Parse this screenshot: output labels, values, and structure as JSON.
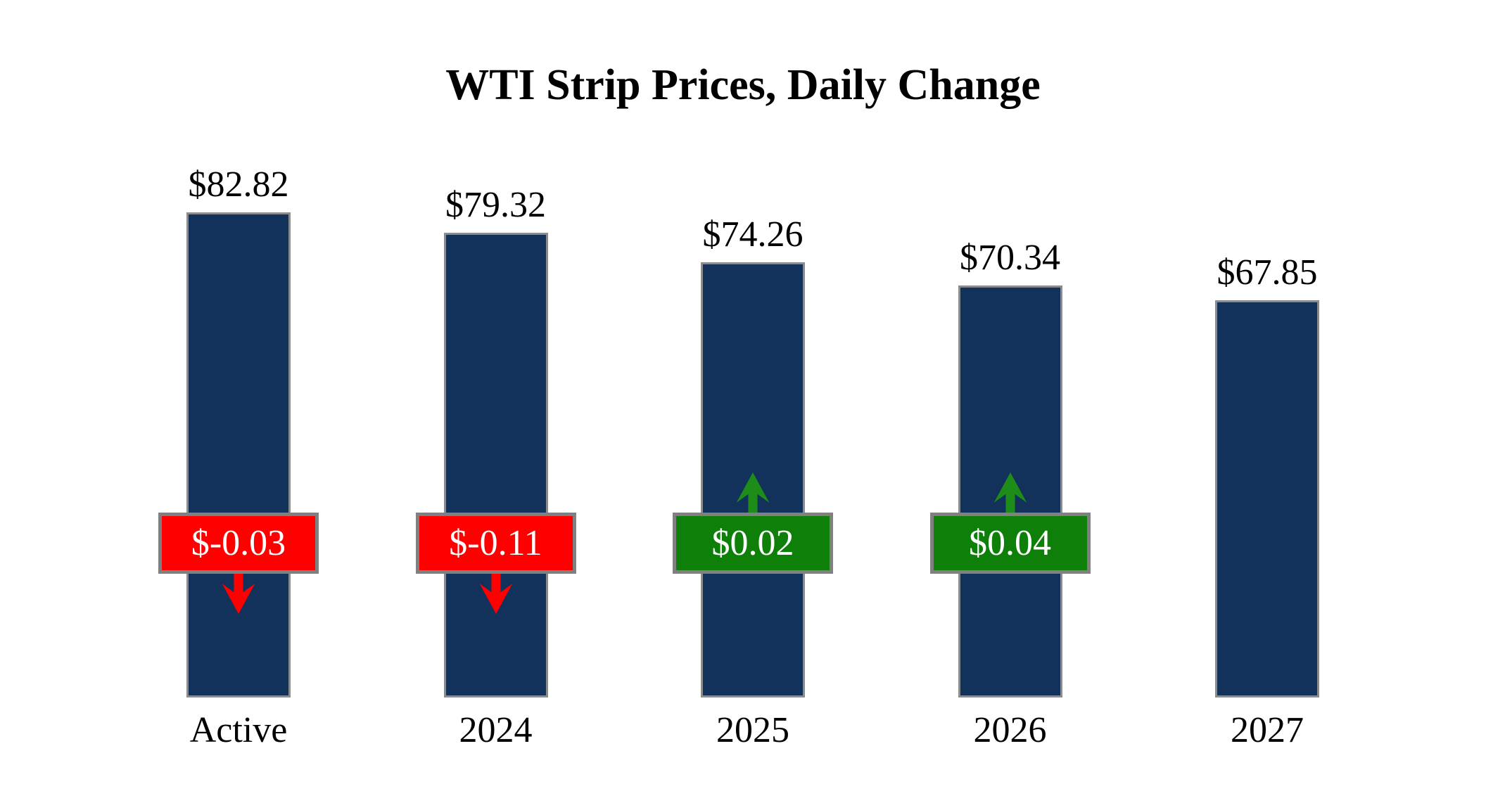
{
  "page": {
    "background_color": "#FFFFFF"
  },
  "chart_data": {
    "type": "bar",
    "title": "WTI Strip Prices, Daily Change",
    "categories": [
      "Active",
      "2024",
      "2025",
      "2026",
      "2027"
    ],
    "values": [
      82.82,
      79.32,
      74.26,
      70.34,
      67.85
    ],
    "value_labels": [
      "$82.82",
      "$79.32",
      "$74.26",
      "$70.34",
      "$67.85"
    ],
    "changes": {
      "values": [
        -0.03,
        -0.11,
        0.02,
        0.04,
        null
      ],
      "labels": [
        "$-0.03",
        "$-0.11",
        "$0.02",
        "$0.04",
        ""
      ],
      "directions": [
        "down",
        "down",
        "up",
        "up",
        "none"
      ]
    },
    "xlabel": "",
    "ylabel": "",
    "ylim": [
      0,
      90
    ],
    "axes_visible": false,
    "grid": false,
    "legend": false,
    "colors": {
      "bar_fill": "#12315B",
      "bar_border": "#8C8C8C",
      "negative_fill": "#FF0000",
      "negative_arrow": "#FF0000",
      "positive_fill": "#0E800A",
      "positive_arrow": "#1E8C19",
      "badge_border": "#808080",
      "badge_text": "#FFFFFF",
      "label_text": "#000000",
      "title_text": "#000000",
      "background": "#FFFFFF"
    }
  }
}
